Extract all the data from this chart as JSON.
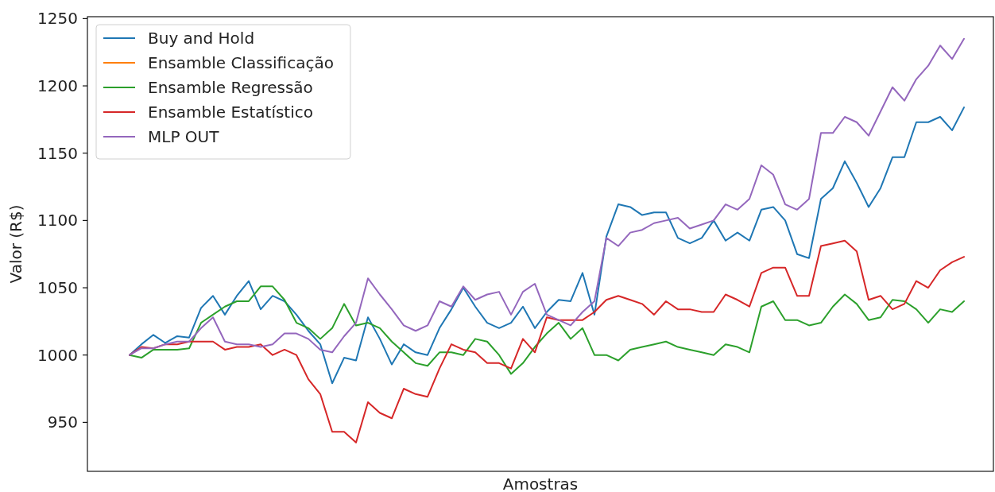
{
  "chart_data": {
    "type": "line",
    "xlabel": "Amostras",
    "ylabel": "Valor (R$)",
    "categories": [
      null,
      null,
      null,
      null,
      null,
      null,
      null,
      null,
      null,
      null,
      null,
      null,
      null,
      null,
      null,
      null,
      null,
      null,
      null,
      null,
      null,
      null,
      null,
      null,
      null,
      null,
      null,
      null,
      null,
      null,
      null,
      null,
      null,
      null,
      null,
      null,
      null,
      null,
      null,
      null,
      null,
      null,
      null,
      null,
      null,
      null,
      null,
      null,
      null,
      null,
      null,
      null,
      null,
      null,
      null,
      null,
      null,
      null,
      null,
      null,
      null,
      null,
      null,
      null,
      null,
      null,
      null,
      null,
      null,
      null,
      null
    ],
    "series": [
      {
        "name": "Buy and Hold",
        "color": "#1f77b4",
        "values": [
          1000,
          1008,
          1015,
          1009,
          1014,
          1013,
          1035,
          1044,
          1030,
          1044,
          1055,
          1034,
          1044,
          1040,
          1030,
          1018,
          1008,
          979,
          998,
          996,
          1028,
          1012,
          993,
          1008,
          1002,
          1000,
          1020,
          1034,
          1050,
          1036,
          1024,
          1020,
          1024,
          1036,
          1020,
          1032,
          1041,
          1040,
          1061,
          1030,
          1088,
          1112,
          1110,
          1104,
          1106,
          1106,
          1087,
          1083,
          1087,
          1100,
          1085,
          1091,
          1085,
          1108,
          1110,
          1100,
          1075,
          1072,
          1116,
          1124,
          1144,
          1128,
          1110,
          1124,
          1147,
          1147,
          1173,
          1173,
          1177,
          1167,
          1184
        ]
      },
      {
        "name": "Ensamble Classificação",
        "color": "#ff7f0e",
        "values": [
          null,
          null,
          null,
          null,
          null,
          null,
          null,
          null,
          null,
          null,
          null,
          null,
          null,
          null,
          null,
          null,
          null,
          null,
          null,
          null,
          null,
          null,
          null,
          null,
          null,
          null,
          null,
          null,
          null,
          null,
          null,
          null,
          null,
          null,
          null,
          null,
          null,
          null,
          null,
          null,
          null,
          null,
          null,
          null,
          null,
          null,
          null,
          null,
          null,
          null,
          null,
          null,
          null,
          null,
          null,
          null,
          null,
          null,
          null,
          null,
          null,
          null,
          null,
          null,
          null,
          null,
          null,
          null,
          null,
          null,
          null
        ]
      },
      {
        "name": "Ensamble Regressão",
        "color": "#2ca02c",
        "values": [
          1000,
          998,
          1004,
          1004,
          1004,
          1005,
          1024,
          1030,
          1036,
          1040,
          1040,
          1051,
          1051,
          1041,
          1024,
          1020,
          1012,
          1020,
          1038,
          1022,
          1024,
          1020,
          1010,
          1002,
          994,
          992,
          1002,
          1002,
          1000,
          1012,
          1010,
          1000,
          986,
          994,
          1006,
          1016,
          1024,
          1012,
          1020,
          1000,
          1000,
          996,
          1004,
          1006,
          1008,
          1010,
          1006,
          1004,
          1002,
          1000,
          1008,
          1006,
          1002,
          1036,
          1040,
          1026,
          1026,
          1022,
          1024,
          1036,
          1045,
          1038,
          1026,
          1028,
          1041,
          1040,
          1034,
          1024,
          1034,
          1032,
          1040
        ]
      },
      {
        "name": "Ensamble Estatístico",
        "color": "#d62728",
        "values": [
          1000,
          1006,
          1005,
          1008,
          1008,
          1010,
          1010,
          1010,
          1004,
          1006,
          1006,
          1008,
          1000,
          1004,
          1000,
          982,
          971,
          943,
          943,
          935,
          965,
          957,
          953,
          975,
          971,
          969,
          990,
          1008,
          1004,
          1002,
          994,
          994,
          990,
          1012,
          1002,
          1028,
          1026,
          1026,
          1026,
          1032,
          1041,
          1044,
          1041,
          1038,
          1030,
          1040,
          1034,
          1034,
          1032,
          1032,
          1045,
          1041,
          1036,
          1061,
          1065,
          1065,
          1044,
          1044,
          1081,
          1083,
          1085,
          1077,
          1041,
          1044,
          1034,
          1038,
          1055,
          1050,
          1063,
          1069,
          1073
        ]
      },
      {
        "name": "MLP OUT",
        "color": "#9467bd",
        "values": [
          1000,
          1005,
          1005,
          1008,
          1010,
          1010,
          1020,
          1028,
          1010,
          1008,
          1008,
          1006,
          1008,
          1016,
          1016,
          1012,
          1004,
          1002,
          1014,
          1024,
          1057,
          1045,
          1034,
          1022,
          1018,
          1022,
          1040,
          1036,
          1051,
          1041,
          1045,
          1047,
          1030,
          1047,
          1053,
          1030,
          1026,
          1022,
          1032,
          1040,
          1087,
          1081,
          1091,
          1093,
          1098,
          1100,
          1102,
          1094,
          1097,
          1100,
          1112,
          1108,
          1116,
          1141,
          1134,
          1112,
          1108,
          1116,
          1165,
          1165,
          1177,
          1173,
          1163,
          1181,
          1199,
          1189,
          1205,
          1215,
          1230,
          1220,
          1235
        ]
      }
    ],
    "ylim": [
      913.6,
      1251.4
    ],
    "yticks": [
      950,
      1000,
      1050,
      1100,
      1150,
      1200,
      1250
    ],
    "tick_labels": "y",
    "legend": "top left"
  }
}
